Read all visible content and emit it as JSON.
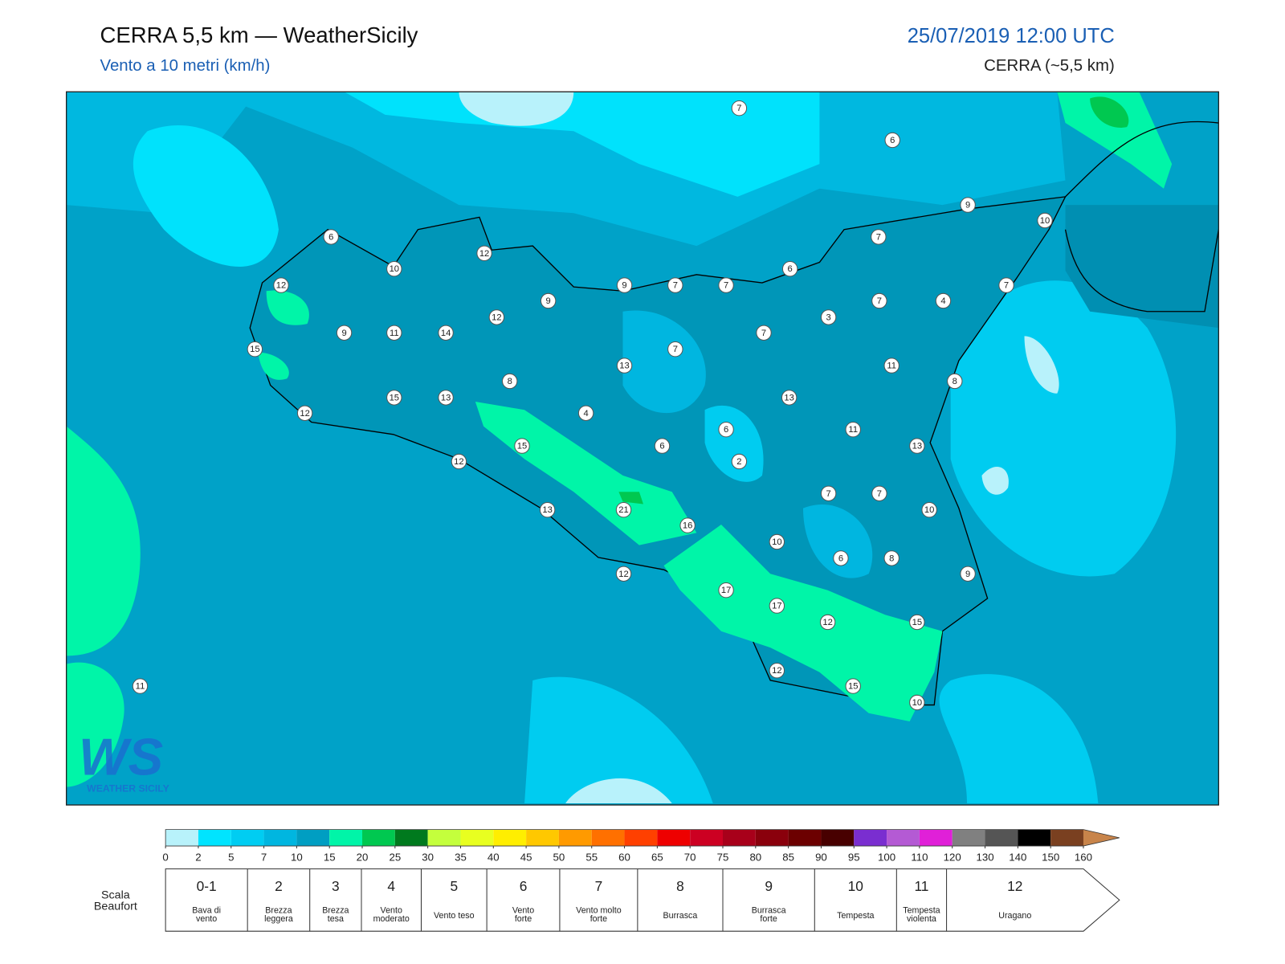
{
  "header": {
    "title": "CERRA 5,5 km — WeatherSicily",
    "subtitle": "Vento a 10 metri (km/h)",
    "date": "25/07/2019 12:00 UTC",
    "model": "CERRA (~5,5 km)"
  },
  "logo": {
    "text": "WS",
    "caption": "WEATHER SICILY"
  },
  "stations": [
    {
      "value": 7
    },
    {
      "value": 6
    },
    {
      "value": 9
    },
    {
      "value": 10
    },
    {
      "value": 7
    },
    {
      "value": 6
    },
    {
      "value": 7
    },
    {
      "value": 7
    },
    {
      "value": 7
    },
    {
      "value": 9
    },
    {
      "value": 6
    },
    {
      "value": 10
    },
    {
      "value": 12
    },
    {
      "value": 12
    },
    {
      "value": 9
    },
    {
      "value": 12
    },
    {
      "value": 3
    },
    {
      "value": 7
    },
    {
      "value": 4
    },
    {
      "value": 7
    },
    {
      "value": 7
    },
    {
      "value": 9
    },
    {
      "value": 11
    },
    {
      "value": 14
    },
    {
      "value": 15
    },
    {
      "value": 11
    },
    {
      "value": 13
    },
    {
      "value": 8
    },
    {
      "value": 8
    },
    {
      "value": 13
    },
    {
      "value": 15
    },
    {
      "value": 13
    },
    {
      "value": 12
    },
    {
      "value": 4
    },
    {
      "value": 6
    },
    {
      "value": 11
    },
    {
      "value": 15
    },
    {
      "value": 6
    },
    {
      "value": 13
    },
    {
      "value": 2
    },
    {
      "value": 12
    },
    {
      "value": 7
    },
    {
      "value": 7
    },
    {
      "value": 13
    },
    {
      "value": 21
    },
    {
      "value": 10
    },
    {
      "value": 16
    },
    {
      "value": 10
    },
    {
      "value": 6
    },
    {
      "value": 8
    },
    {
      "value": 9
    },
    {
      "value": 12
    },
    {
      "value": 17
    },
    {
      "value": 17
    },
    {
      "value": 12
    },
    {
      "value": 15
    },
    {
      "value": 12
    },
    {
      "value": 15
    },
    {
      "value": 10
    },
    {
      "value": 11
    }
  ],
  "colorbar": {
    "ticks": [
      0,
      2,
      5,
      7,
      10,
      15,
      20,
      25,
      30,
      35,
      40,
      45,
      50,
      55,
      60,
      65,
      70,
      75,
      80,
      85,
      90,
      95,
      100,
      110,
      120,
      130,
      140,
      150,
      160
    ],
    "colors": [
      "#b8f2fb",
      "#00e4ff",
      "#00cdf2",
      "#00b6e0",
      "#009ec2",
      "#00f5a8",
      "#00c850",
      "#007a1e",
      "#c4ff3c",
      "#e8ff20",
      "#ffee00",
      "#ffc800",
      "#ff9a00",
      "#ff7000",
      "#ff4000",
      "#ee0000",
      "#cc0022",
      "#a8001a",
      "#8a000c",
      "#6c0000",
      "#480000",
      "#7a2ed0",
      "#b45ad4",
      "#e020d8",
      "#808080",
      "#555555",
      "#000000",
      "#7a4020"
    ],
    "arrow_color": "#c8844a"
  },
  "beaufort": {
    "label": [
      "Scala",
      "Beaufort"
    ],
    "classes": [
      {
        "number": "0-1",
        "label": [
          "Bava di",
          "vento"
        ]
      },
      {
        "number": "2",
        "label": [
          "Brezza",
          "leggera"
        ]
      },
      {
        "number": "3",
        "label": [
          "Brezza",
          "tesa"
        ]
      },
      {
        "number": "4",
        "label": [
          "Vento",
          "moderato"
        ]
      },
      {
        "number": "5",
        "label": [
          "Vento teso"
        ]
      },
      {
        "number": "6",
        "label": [
          "Vento",
          "forte"
        ]
      },
      {
        "number": "7",
        "label": [
          "Vento molto",
          "forte"
        ]
      },
      {
        "number": "8",
        "label": [
          "Burrasca"
        ]
      },
      {
        "number": "9",
        "label": [
          "Burrasca",
          "forte"
        ]
      },
      {
        "number": "10",
        "label": [
          "Tempesta"
        ]
      },
      {
        "number": "11",
        "label": [
          "Tempesta",
          "violenta"
        ]
      },
      {
        "number": "12",
        "label": [
          "Uragano"
        ]
      }
    ]
  }
}
